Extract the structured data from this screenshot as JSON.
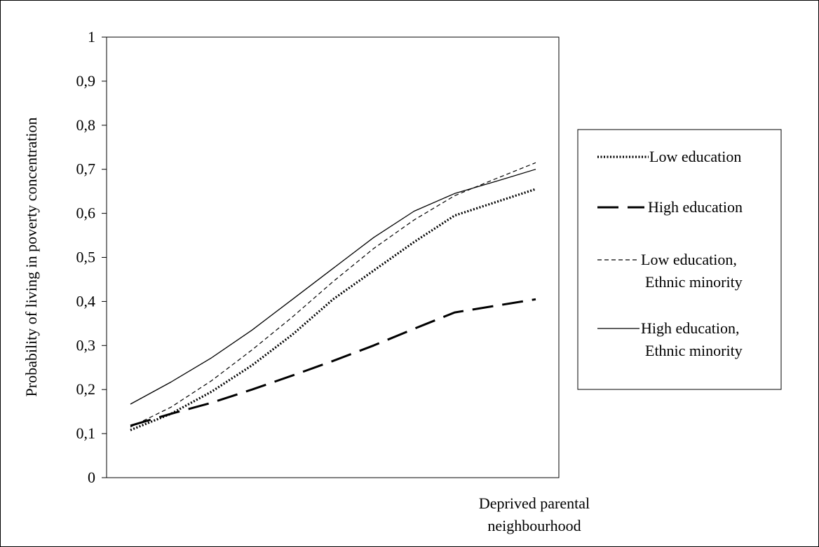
{
  "chart_data": {
    "type": "line",
    "title": "",
    "ylabel": "Probability  of living  in poverty concentration",
    "xlabel": [
      "Deprived parental",
      "neighbourhood"
    ],
    "ylim": [
      0,
      1
    ],
    "yticks": [
      "0",
      "0,1",
      "0,2",
      "0,3",
      "0,4",
      "0,5",
      "0,6",
      "0,7",
      "0,8",
      "0,9",
      "1"
    ],
    "x": [
      0,
      0.1,
      0.2,
      0.3,
      0.4,
      0.5,
      0.6,
      0.7,
      0.8,
      0.9,
      1
    ],
    "legend_position": "right",
    "grid": false,
    "series": [
      {
        "key": "low",
        "legend": [
          "Low education"
        ],
        "style": "dotted",
        "values": [
          0.108,
          0.145,
          0.195,
          0.255,
          0.325,
          0.405,
          0.47,
          0.535,
          0.595,
          0.625,
          0.655
        ]
      },
      {
        "key": "high",
        "legend": [
          "High education"
        ],
        "style": "long-dash",
        "values": [
          0.118,
          0.145,
          0.17,
          0.2,
          0.232,
          0.265,
          0.3,
          0.338,
          0.375,
          0.39,
          0.405
        ]
      },
      {
        "key": "lowmin",
        "legend": [
          "Low education,",
          "Ethnic minority"
        ],
        "style": "short-dash",
        "values": [
          0.115,
          0.16,
          0.22,
          0.29,
          0.365,
          0.445,
          0.52,
          0.585,
          0.64,
          0.678,
          0.715
        ]
      },
      {
        "key": "highmin",
        "legend": [
          "High education,",
          "Ethnic minority"
        ],
        "style": "solid",
        "values": [
          0.167,
          0.217,
          0.272,
          0.335,
          0.405,
          0.475,
          0.545,
          0.605,
          0.645,
          0.672,
          0.7
        ]
      }
    ]
  }
}
